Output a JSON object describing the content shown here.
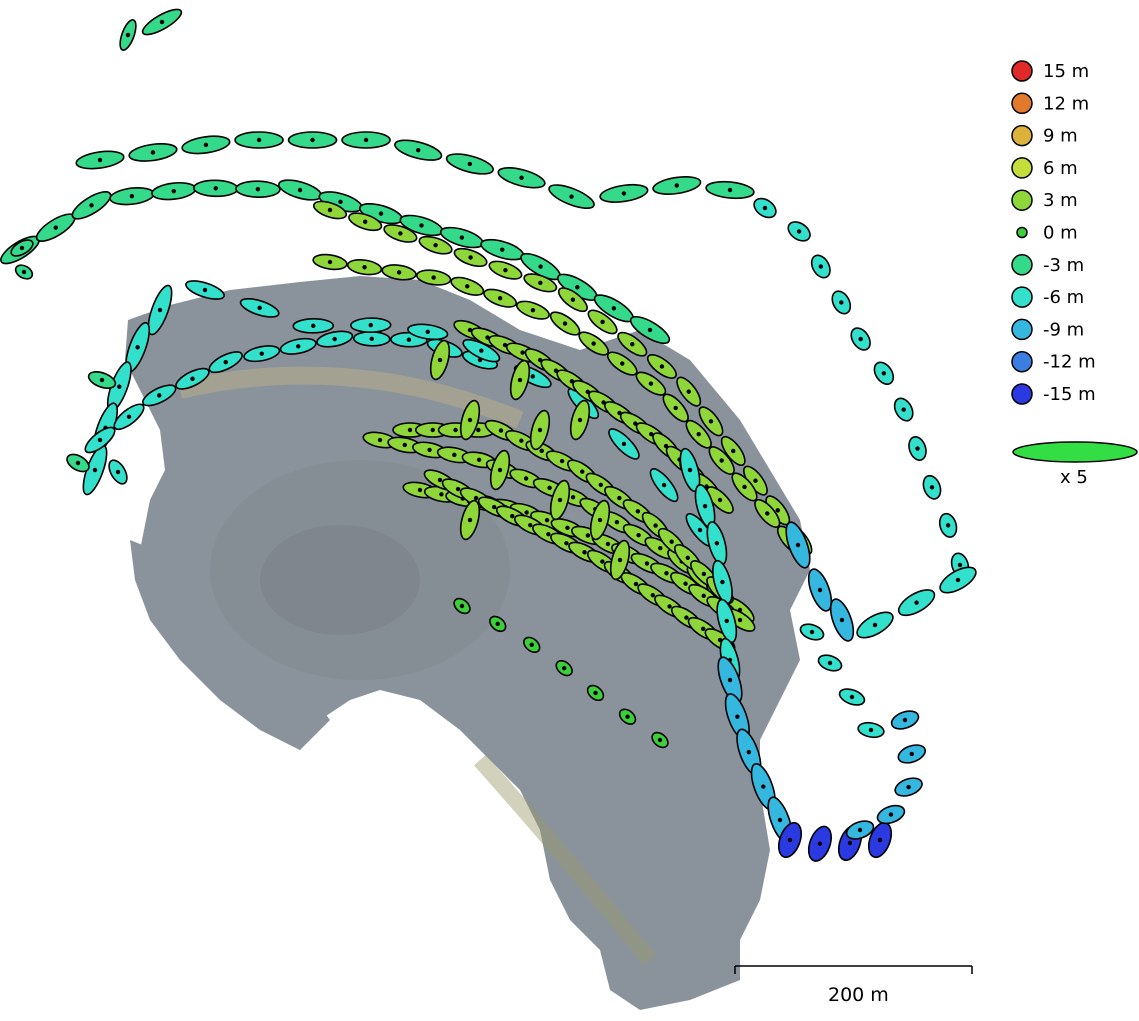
{
  "legend": {
    "items": [
      {
        "label": "15 m",
        "color": "#e02a2a"
      },
      {
        "label": "12 m",
        "color": "#e27a2e"
      },
      {
        "label": "9 m",
        "color": "#ddb23a"
      },
      {
        "label": "6 m",
        "color": "#c5dd3a"
      },
      {
        "label": "3 m",
        "color": "#8ed63a"
      },
      {
        "label": "0 m",
        "color": "#3ccf3a"
      },
      {
        "label": "-3 m",
        "color": "#35d98a"
      },
      {
        "label": "-6 m",
        "color": "#33e0cc"
      },
      {
        "label": "-9 m",
        "color": "#35b7e0"
      },
      {
        "label": "-12 m",
        "color": "#3a7fe0"
      },
      {
        "label": "-15 m",
        "color": "#2a3ae0"
      }
    ],
    "error_ellipse_color": "#33dd44",
    "error_ellipse_label": "x 5"
  },
  "scale_bar": {
    "label": "200 m"
  },
  "terrain_color": "#8a939c",
  "flight_lines": {
    "outer_top_arc_color": "#35d98a",
    "inner_arc_color": "#35d98a",
    "green_lines_color": "#8ed63a",
    "cyan_lines_color": "#33e0cc",
    "right_loop_color": "#33e0cc",
    "blue_path_color": "#35b7e0",
    "deep_blue_color": "#3a7fe0",
    "deepest_blue_color": "#2a3ae0",
    "low_line_color": "#3ccf3a"
  }
}
